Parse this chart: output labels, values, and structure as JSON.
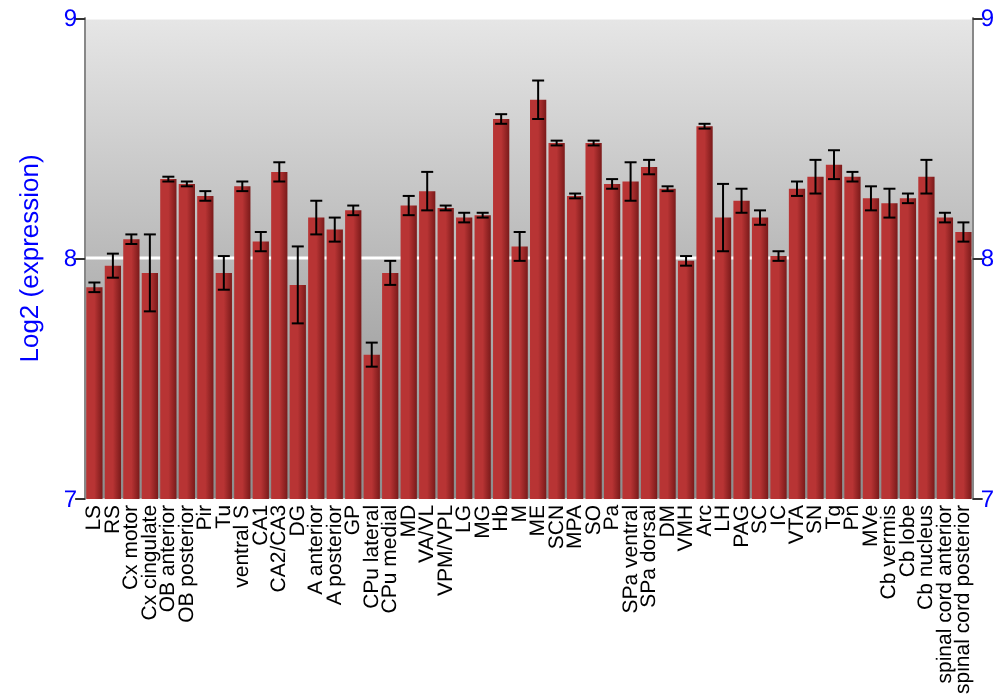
{
  "chart_data": {
    "type": "bar",
    "ylabel": "Log2 (expression)",
    "categories": [
      "LS",
      "RS",
      "Cx motor",
      "Cx cingulate",
      "OB anterior",
      "OB posterior",
      "Pir",
      "Tu",
      "ventral S",
      "CA1",
      "CA2/CA3",
      "DG",
      "A anterior",
      "A posterior",
      "GP",
      "CPu lateral",
      "CPu medial",
      "MD",
      "VA/VL",
      "VPM/VPL",
      "LG",
      "MG",
      "Hb",
      "M",
      "ME",
      "SCN",
      "MPA",
      "SO",
      "Pa",
      "SPa ventral",
      "SPa dorsal",
      "DM",
      "VMH",
      "Arc",
      "LH",
      "PAG",
      "SC",
      "IC",
      "VTA",
      "SN",
      "Tg",
      "Pn",
      "MVe",
      "Cb vermis",
      "Cb lobe",
      "Cb nucleus",
      "spinal cord anterior",
      "spinal cord posterior"
    ],
    "values": [
      7.88,
      7.97,
      8.08,
      7.94,
      8.33,
      8.31,
      8.26,
      7.94,
      8.3,
      8.07,
      8.36,
      7.89,
      8.17,
      8.12,
      8.2,
      7.6,
      7.94,
      8.22,
      8.28,
      8.21,
      8.17,
      8.18,
      8.58,
      8.05,
      8.66,
      8.48,
      8.26,
      8.48,
      8.31,
      8.32,
      8.38,
      8.29,
      7.99,
      8.55,
      8.17,
      8.24,
      8.17,
      8.01,
      8.29,
      8.34,
      8.39,
      8.34,
      8.25,
      8.23,
      8.25,
      8.34,
      8.17,
      8.11
    ],
    "errors": [
      0.02,
      0.05,
      0.02,
      0.16,
      0.01,
      0.01,
      0.02,
      0.07,
      0.02,
      0.04,
      0.04,
      0.16,
      0.07,
      0.05,
      0.02,
      0.05,
      0.05,
      0.04,
      0.08,
      0.01,
      0.02,
      0.01,
      0.02,
      0.06,
      0.08,
      0.01,
      0.01,
      0.01,
      0.02,
      0.08,
      0.03,
      0.01,
      0.02,
      0.01,
      0.14,
      0.05,
      0.03,
      0.02,
      0.03,
      0.07,
      0.06,
      0.02,
      0.05,
      0.06,
      0.02,
      0.07,
      0.02,
      0.04
    ],
    "color": "#b83434",
    "ylim": [
      7,
      9
    ],
    "yticks": [
      7,
      8,
      9
    ],
    "y2lim": [
      7,
      9
    ],
    "y2ticks": [
      7,
      8,
      9
    ],
    "grid": "y"
  }
}
